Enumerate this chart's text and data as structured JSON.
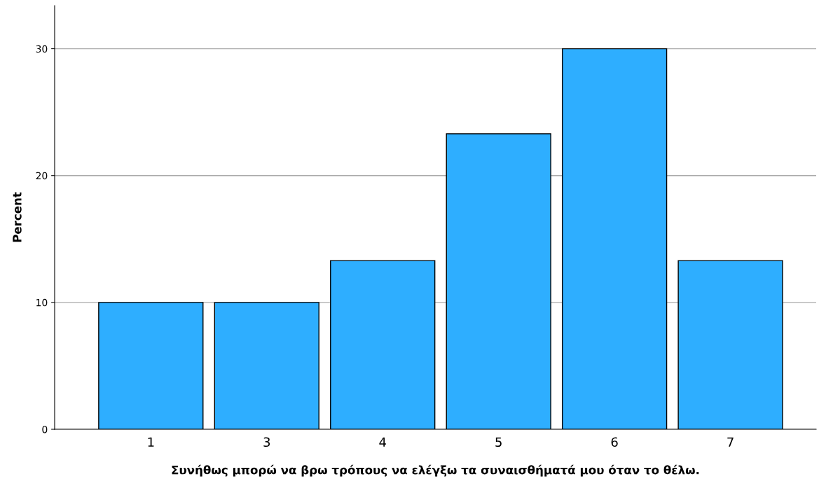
{
  "chart_data": {
    "type": "bar",
    "xlabel": "Συνήθως μπορώ να βρω τρόπους να ελέγξω τα συναισθήματά μου όταν το θέλω.",
    "ylabel": "Percent",
    "categories": [
      "1",
      "3",
      "4",
      "5",
      "6",
      "7"
    ],
    "values": [
      10,
      10,
      13.3,
      23.3,
      30,
      13.3
    ],
    "color": "#2eaeff",
    "ylim": [
      0,
      33.4
    ],
    "yticks": [
      0,
      10,
      20,
      30
    ],
    "grid": "y",
    "legend": false
  }
}
